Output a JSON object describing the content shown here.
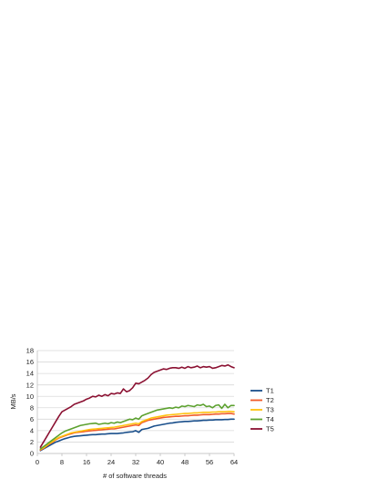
{
  "chart_data": {
    "type": "line",
    "title": "",
    "xlabel": "# of software threads",
    "ylabel": "MB/s",
    "xlim": [
      0,
      64
    ],
    "ylim": [
      0,
      18
    ],
    "xticks": [
      0,
      8,
      16,
      24,
      32,
      40,
      48,
      56,
      64
    ],
    "yticks": [
      0,
      2,
      4,
      6,
      8,
      10,
      12,
      14,
      16,
      18
    ],
    "grid": "horizontal",
    "legend_position": "right",
    "x": [
      1,
      2,
      3,
      4,
      5,
      6,
      7,
      8,
      9,
      10,
      11,
      12,
      13,
      14,
      15,
      16,
      17,
      18,
      19,
      20,
      21,
      22,
      23,
      24,
      25,
      26,
      27,
      28,
      29,
      30,
      31,
      32,
      33,
      34,
      35,
      36,
      37,
      38,
      39,
      40,
      41,
      42,
      43,
      44,
      45,
      46,
      47,
      48,
      49,
      50,
      51,
      52,
      53,
      54,
      55,
      56,
      57,
      58,
      59,
      60,
      61,
      62,
      63,
      64
    ],
    "series": [
      {
        "name": "T1",
        "color": "#1a4f8b",
        "values": [
          0.5,
          0.8,
          1.1,
          1.4,
          1.7,
          2.0,
          2.2,
          2.4,
          2.6,
          2.75,
          2.9,
          3.0,
          3.05,
          3.1,
          3.15,
          3.2,
          3.25,
          3.3,
          3.3,
          3.35,
          3.4,
          3.4,
          3.45,
          3.5,
          3.5,
          3.5,
          3.55,
          3.6,
          3.7,
          3.75,
          3.8,
          4.0,
          3.7,
          4.2,
          4.3,
          4.4,
          4.6,
          4.8,
          4.9,
          5.0,
          5.1,
          5.2,
          5.3,
          5.35,
          5.45,
          5.5,
          5.55,
          5.6,
          5.6,
          5.65,
          5.7,
          5.7,
          5.75,
          5.8,
          5.8,
          5.85,
          5.85,
          5.9,
          5.9,
          5.9,
          5.95,
          5.95,
          6.0,
          6.0
        ]
      },
      {
        "name": "T2",
        "color": "#f05a28",
        "values": [
          0.6,
          0.9,
          1.3,
          1.7,
          2.0,
          2.4,
          2.7,
          2.9,
          3.1,
          3.3,
          3.45,
          3.6,
          3.7,
          3.75,
          3.8,
          3.9,
          3.95,
          4.0,
          4.05,
          4.1,
          4.15,
          4.2,
          4.25,
          4.3,
          4.3,
          4.4,
          4.5,
          4.6,
          4.7,
          4.8,
          4.9,
          5.0,
          4.9,
          5.4,
          5.6,
          5.8,
          5.9,
          6.0,
          6.1,
          6.2,
          6.3,
          6.35,
          6.4,
          6.45,
          6.5,
          6.5,
          6.55,
          6.6,
          6.6,
          6.65,
          6.7,
          6.7,
          6.75,
          6.8,
          6.8,
          6.8,
          6.85,
          6.9,
          6.9,
          6.95,
          6.95,
          7.0,
          7.0,
          6.9
        ]
      },
      {
        "name": "T3",
        "color": "#ffc20e",
        "values": [
          0.7,
          1.0,
          1.4,
          1.8,
          2.1,
          2.5,
          2.8,
          3.0,
          3.2,
          3.4,
          3.6,
          3.7,
          3.8,
          3.9,
          4.0,
          4.1,
          4.2,
          4.25,
          4.3,
          4.35,
          4.4,
          4.45,
          4.5,
          4.55,
          4.6,
          4.7,
          4.8,
          4.9,
          5.0,
          5.1,
          5.2,
          5.3,
          5.2,
          5.6,
          5.8,
          6.0,
          6.2,
          6.3,
          6.4,
          6.5,
          6.6,
          6.7,
          6.75,
          6.8,
          6.85,
          6.9,
          6.95,
          7.0,
          7.0,
          7.05,
          7.1,
          7.1,
          7.15,
          7.2,
          7.2,
          7.2,
          7.25,
          7.25,
          7.3,
          7.3,
          7.3,
          7.35,
          7.35,
          7.3
        ]
      },
      {
        "name": "T4",
        "color": "#5ca12f",
        "values": [
          0.8,
          1.2,
          1.6,
          2.0,
          2.4,
          2.8,
          3.2,
          3.6,
          3.9,
          4.1,
          4.3,
          4.5,
          4.7,
          4.9,
          5.0,
          5.1,
          5.2,
          5.25,
          5.3,
          5.1,
          5.2,
          5.3,
          5.2,
          5.4,
          5.3,
          5.5,
          5.4,
          5.6,
          5.8,
          6.0,
          5.9,
          6.2,
          6.0,
          6.6,
          6.8,
          7.0,
          7.2,
          7.4,
          7.6,
          7.7,
          7.8,
          7.9,
          8.0,
          7.9,
          8.1,
          8.0,
          8.3,
          8.2,
          8.4,
          8.3,
          8.2,
          8.5,
          8.4,
          8.6,
          8.2,
          8.3,
          8.0,
          8.4,
          8.5,
          7.9,
          8.6,
          8.0,
          8.4,
          8.4
        ]
      },
      {
        "name": "T5",
        "color": "#8b1132",
        "values": [
          1.1,
          2.0,
          2.9,
          3.8,
          4.7,
          5.6,
          6.5,
          7.3,
          7.6,
          7.9,
          8.2,
          8.6,
          8.8,
          9.0,
          9.2,
          9.5,
          9.7,
          10.0,
          9.9,
          10.2,
          10.0,
          10.3,
          10.1,
          10.5,
          10.4,
          10.6,
          10.5,
          11.3,
          10.8,
          11.0,
          11.5,
          12.3,
          12.2,
          12.5,
          12.8,
          13.2,
          13.8,
          14.2,
          14.4,
          14.6,
          14.8,
          14.7,
          14.9,
          15.0,
          15.0,
          14.9,
          15.1,
          14.9,
          15.2,
          15.0,
          15.1,
          15.3,
          15.0,
          15.2,
          15.1,
          15.2,
          14.9,
          15.0,
          15.2,
          15.4,
          15.3,
          15.5,
          15.2,
          15.0
        ]
      }
    ]
  }
}
